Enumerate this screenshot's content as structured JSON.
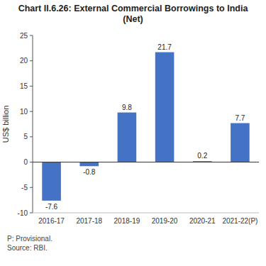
{
  "chart_data": {
    "type": "bar",
    "title": "Chart II.6.26: External Commercial Borrowings to India\n(Net)",
    "categories": [
      "2016-17",
      "2017-18",
      "2018-19",
      "2019-20",
      "2020-21",
      "2021-22(P)"
    ],
    "values": [
      -7.6,
      -0.8,
      9.8,
      21.7,
      0.2,
      7.7
    ],
    "color": "#4472C4",
    "ylabel": "US$ billion",
    "ylim": [
      -10,
      25
    ],
    "yticks": [
      -10,
      -5,
      0,
      5,
      10,
      15,
      20,
      25
    ],
    "grid": false,
    "data_labels": true,
    "footnote": "P: Provisional.\nSource: RBI."
  }
}
